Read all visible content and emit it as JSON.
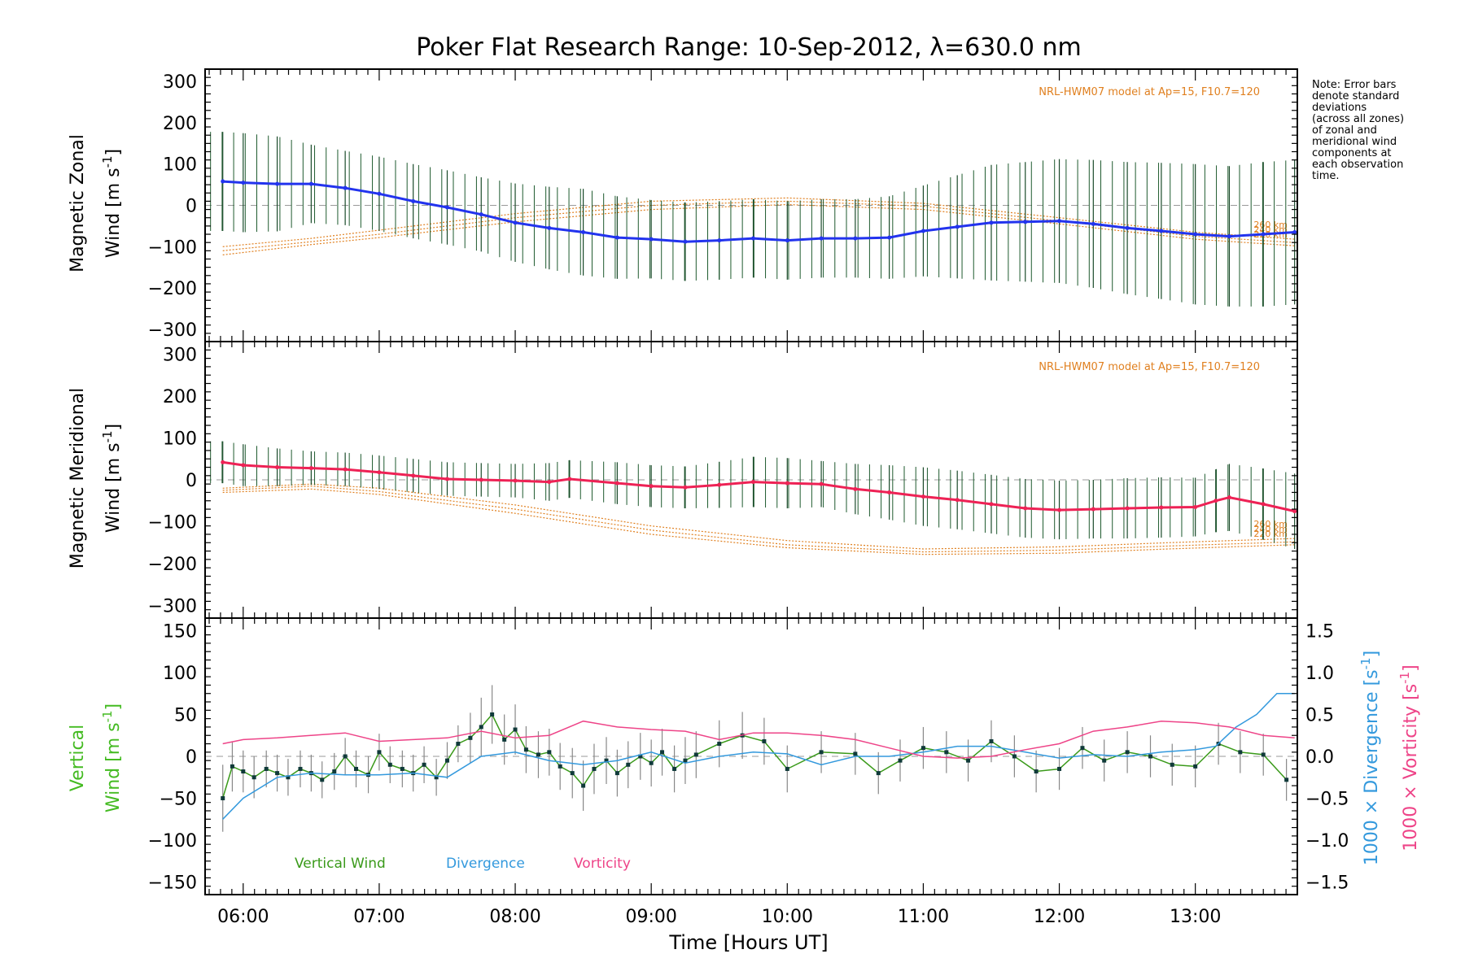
{
  "chart_data": [
    {
      "type": "line",
      "title": "Poker Flat Research Range: 10-Sep-2012, λ=630.0 nm",
      "ylabel_line1": "Magnetic Zonal",
      "ylabel_line2_prefix": "Wind [m s",
      "ylabel_sup": "-1",
      "ylabel_line2_suffix": "]",
      "ylim": [
        -330,
        330
      ],
      "yticks": [
        300,
        200,
        100,
        0,
        -100,
        -200,
        -300
      ],
      "ytick_labels": [
        "300",
        "200",
        "100",
        "0",
        "−100",
        "−200",
        "−300"
      ],
      "model_label": "NRL-HWM07 model at Ap=15, F10.7=120",
      "altitude_labels": [
        "260 km",
        "240 km",
        "220 km"
      ],
      "note": [
        "Note: Error bars",
        "denote standard",
        "deviations",
        "(across all zones)",
        "of zonal and",
        "meridional wind",
        "components at",
        "each observation",
        "time."
      ],
      "series": [
        {
          "values_x": [
            5.85,
            6.0,
            6.25,
            6.5,
            6.75,
            7.0,
            7.25,
            7.5,
            7.75,
            8.0,
            8.25,
            8.5,
            8.75,
            9.0,
            9.25,
            9.5,
            9.75,
            10.0,
            10.25,
            10.5,
            10.75,
            11.0,
            11.25,
            11.5,
            11.75,
            12.0,
            12.25,
            12.5,
            12.75,
            13.0,
            13.25,
            13.5,
            13.73
          ],
          "values_y": [
            58,
            55,
            52,
            52,
            42,
            28,
            10,
            -5,
            -22,
            -42,
            -55,
            -65,
            -78,
            -82,
            -88,
            -85,
            -80,
            -85,
            -80,
            -80,
            -78,
            -62,
            -52,
            -42,
            -40,
            -38,
            -45,
            -55,
            -62,
            -70,
            -75,
            -70,
            -65
          ],
          "err": [
            120,
            120,
            115,
            95,
            90,
            90,
            90,
            90,
            90,
            95,
            100,
            105,
            100,
            95,
            95,
            95,
            95,
            95,
            95,
            95,
            100,
            110,
            125,
            140,
            145,
            150,
            155,
            160,
            165,
            170,
            170,
            175,
            175
          ],
          "color": "#2233ee"
        }
      ],
      "model_series": [
        {
          "name": "260 km",
          "x": [
            5.85,
            6.5,
            7.0,
            8.0,
            9.0,
            10.0,
            11.0,
            12.0,
            13.0,
            13.73
          ],
          "y": [
            -100,
            -80,
            -60,
            -20,
            10,
            18,
            5,
            -30,
            -65,
            -82
          ]
        },
        {
          "name": "240 km",
          "x": [
            5.85,
            6.5,
            7.0,
            8.0,
            9.0,
            10.0,
            11.0,
            12.0,
            13.0,
            13.73
          ],
          "y": [
            -110,
            -88,
            -70,
            -30,
            0,
            10,
            -2,
            -38,
            -75,
            -90
          ]
        },
        {
          "name": "220 km",
          "x": [
            5.85,
            6.5,
            7.0,
            8.0,
            9.0,
            10.0,
            11.0,
            12.0,
            13.0,
            13.73
          ],
          "y": [
            -120,
            -95,
            -78,
            -40,
            -10,
            2,
            -10,
            -45,
            -82,
            -98
          ]
        }
      ],
      "model_color": "#e08020"
    },
    {
      "type": "line",
      "ylabel_line1": "Magnetic Meridional",
      "ylabel_line2_prefix": "Wind [m s",
      "ylabel_sup": "-1",
      "ylabel_line2_suffix": "]",
      "ylim": [
        -330,
        330
      ],
      "yticks": [
        300,
        200,
        100,
        0,
        -100,
        -200,
        -300
      ],
      "ytick_labels": [
        "300",
        "200",
        "100",
        "0",
        "−100",
        "−200",
        "−300"
      ],
      "model_label": "NRL-HWM07 model at Ap=15, F10.7=120",
      "altitude_labels": [
        "260 km",
        "240 km",
        "220 km"
      ],
      "series": [
        {
          "values_x": [
            5.85,
            6.0,
            6.25,
            6.5,
            6.75,
            7.0,
            7.25,
            7.5,
            7.75,
            8.0,
            8.25,
            8.4,
            8.75,
            9.0,
            9.25,
            9.5,
            9.75,
            10.0,
            10.25,
            10.5,
            10.75,
            11.0,
            11.25,
            11.5,
            11.75,
            12.0,
            12.25,
            12.5,
            12.75,
            13.0,
            13.15,
            13.25,
            13.5,
            13.73
          ],
          "values_y": [
            42,
            35,
            30,
            28,
            25,
            18,
            10,
            2,
            0,
            -2,
            -5,
            2,
            -8,
            -15,
            -18,
            -12,
            -5,
            -8,
            -10,
            -22,
            -30,
            -40,
            -48,
            -58,
            -68,
            -72,
            -70,
            -68,
            -66,
            -65,
            -50,
            -42,
            -58,
            -75
          ],
          "err": [
            50,
            50,
            45,
            40,
            40,
            40,
            40,
            40,
            40,
            40,
            45,
            45,
            50,
            50,
            50,
            55,
            60,
            60,
            55,
            60,
            65,
            70,
            70,
            70,
            70,
            70,
            70,
            72,
            72,
            70,
            75,
            80,
            85,
            90
          ],
          "color": "#ee2255"
        }
      ],
      "model_series": [
        {
          "name": "260 km",
          "x": [
            5.85,
            6.5,
            7.0,
            8.0,
            9.0,
            10.0,
            11.0,
            12.0,
            12.8,
            13.73
          ],
          "y": [
            -20,
            -10,
            -20,
            -60,
            -110,
            -145,
            -165,
            -160,
            -150,
            -140
          ]
        },
        {
          "name": "240 km",
          "x": [
            5.85,
            6.5,
            7.0,
            8.0,
            9.0,
            10.0,
            11.0,
            12.0,
            12.8,
            13.73
          ],
          "y": [
            -25,
            -15,
            -28,
            -70,
            -120,
            -155,
            -172,
            -168,
            -158,
            -148
          ]
        },
        {
          "name": "220 km",
          "x": [
            5.85,
            6.5,
            7.0,
            8.0,
            9.0,
            10.0,
            11.0,
            12.0,
            12.8,
            13.73
          ],
          "y": [
            -30,
            -22,
            -35,
            -80,
            -130,
            -162,
            -178,
            -175,
            -165,
            -155
          ]
        }
      ],
      "model_color": "#e08020"
    },
    {
      "type": "line",
      "ylabel_line1": "Vertical",
      "ylabel_line2_prefix": "Wind [m s",
      "ylabel_sup": "-1",
      "ylabel_line2_suffix": "]",
      "ylim": [
        -165,
        165
      ],
      "yticks": [
        150,
        100,
        50,
        0,
        -50,
        -100,
        -150
      ],
      "ytick_labels": [
        "150",
        "100",
        "50",
        "0",
        "−50",
        "−100",
        "−150"
      ],
      "y2lim": [
        -1.65,
        1.65
      ],
      "y2ticks": [
        1.5,
        1.0,
        0.5,
        0.0,
        -0.5,
        -1.0,
        -1.5
      ],
      "y2tick_labels": [
        "1.5",
        "1.0",
        "0.5",
        "0.0",
        "−0.5",
        "−1.0",
        "−1.5"
      ],
      "y2label_div_prefix": "1000 × Divergence [s",
      "y2label_div_sup": "-1",
      "y2label_div_suffix": "]",
      "y2label_vort_prefix": "1000 × Vorticity [s",
      "y2label_vort_sup": "-1",
      "y2label_vort_suffix": "]",
      "legend": [
        "Vertical Wind",
        "Divergence",
        "Vorticity"
      ],
      "series": [
        {
          "name": "Vertical Wind",
          "color": "#3a9a1a",
          "values_x": [
            5.85,
            5.92,
            6.0,
            6.08,
            6.17,
            6.25,
            6.33,
            6.42,
            6.5,
            6.58,
            6.67,
            6.75,
            6.83,
            6.92,
            7.0,
            7.08,
            7.17,
            7.25,
            7.33,
            7.42,
            7.5,
            7.58,
            7.67,
            7.75,
            7.83,
            7.92,
            8.0,
            8.08,
            8.17,
            8.25,
            8.33,
            8.42,
            8.5,
            8.58,
            8.67,
            8.75,
            8.83,
            8.92,
            9.0,
            9.08,
            9.17,
            9.25,
            9.33,
            9.5,
            9.67,
            9.83,
            10.0,
            10.25,
            10.5,
            10.67,
            10.83,
            11.0,
            11.17,
            11.33,
            11.5,
            11.67,
            11.83,
            12.0,
            12.17,
            12.33,
            12.5,
            12.67,
            12.83,
            13.0,
            13.17,
            13.33,
            13.5,
            13.67
          ],
          "values_y": [
            -50,
            -12,
            -18,
            -25,
            -15,
            -20,
            -25,
            -15,
            -20,
            -28,
            -18,
            0,
            -15,
            -22,
            5,
            -10,
            -15,
            -20,
            -10,
            -25,
            -5,
            15,
            22,
            35,
            50,
            20,
            32,
            8,
            2,
            5,
            -12,
            -20,
            -35,
            -15,
            -5,
            -20,
            -10,
            0,
            -8,
            5,
            -15,
            -5,
            2,
            15,
            25,
            18,
            -15,
            5,
            3,
            -20,
            -5,
            10,
            5,
            -5,
            18,
            0,
            -18,
            -15,
            10,
            -5,
            5,
            0,
            -10,
            -12,
            15,
            5,
            2,
            -28
          ],
          "err": [
            40,
            30,
            25,
            25,
            22,
            22,
            22,
            22,
            22,
            22,
            22,
            22,
            22,
            22,
            22,
            22,
            22,
            22,
            22,
            22,
            22,
            22,
            30,
            35,
            35,
            30,
            30,
            28,
            28,
            28,
            28,
            30,
            30,
            30,
            28,
            28,
            28,
            28,
            28,
            28,
            28,
            28,
            28,
            28,
            28,
            28,
            28,
            25,
            25,
            25,
            25,
            25,
            25,
            25,
            25,
            25,
            25,
            25,
            25,
            25,
            25,
            25,
            25,
            25,
            25,
            25,
            25,
            25
          ]
        },
        {
          "name": "Divergence",
          "color": "#3399dd",
          "axis": "right",
          "values_x": [
            5.85,
            6.0,
            6.25,
            6.5,
            6.75,
            7.0,
            7.25,
            7.5,
            7.75,
            8.0,
            8.25,
            8.5,
            8.75,
            9.0,
            9.25,
            9.5,
            9.75,
            10.0,
            10.25,
            10.5,
            10.75,
            11.0,
            11.25,
            11.5,
            11.75,
            12.0,
            12.25,
            12.5,
            12.75,
            13.0,
            13.15,
            13.3,
            13.45,
            13.6,
            13.73
          ],
          "values_y": [
            -0.75,
            -0.5,
            -0.25,
            -0.2,
            -0.22,
            -0.22,
            -0.2,
            -0.25,
            0.0,
            0.05,
            -0.05,
            -0.1,
            -0.05,
            0.05,
            -0.08,
            0.0,
            0.05,
            0.03,
            -0.1,
            0.0,
            0.0,
            0.05,
            0.12,
            0.12,
            0.05,
            -0.02,
            0.02,
            0.0,
            0.05,
            0.08,
            0.12,
            0.35,
            0.5,
            0.75,
            0.75
          ]
        },
        {
          "name": "Vorticity",
          "color": "#ee4488",
          "axis": "right",
          "values_x": [
            5.85,
            6.0,
            6.25,
            6.5,
            6.75,
            7.0,
            7.25,
            7.5,
            7.75,
            8.0,
            8.25,
            8.5,
            8.75,
            9.0,
            9.25,
            9.5,
            9.75,
            10.0,
            10.25,
            10.5,
            10.75,
            11.0,
            11.25,
            11.5,
            11.75,
            12.0,
            12.25,
            12.5,
            12.75,
            13.0,
            13.25,
            13.5,
            13.73
          ],
          "values_y": [
            0.15,
            0.2,
            0.22,
            0.25,
            0.28,
            0.18,
            0.2,
            0.22,
            0.3,
            0.22,
            0.25,
            0.42,
            0.35,
            0.32,
            0.3,
            0.2,
            0.28,
            0.28,
            0.25,
            0.2,
            0.1,
            0.0,
            -0.02,
            0.0,
            0.08,
            0.15,
            0.3,
            0.35,
            0.42,
            0.4,
            0.35,
            0.25,
            0.22
          ]
        }
      ],
      "xlabel": "Time [Hours UT]",
      "xticks": [
        6,
        7,
        8,
        9,
        10,
        11,
        12,
        13
      ],
      "xtick_labels": [
        "06:00",
        "07:00",
        "08:00",
        "09:00",
        "10:00",
        "11:00",
        "12:00",
        "13:00"
      ],
      "xlim": [
        5.72,
        13.75
      ]
    }
  ]
}
